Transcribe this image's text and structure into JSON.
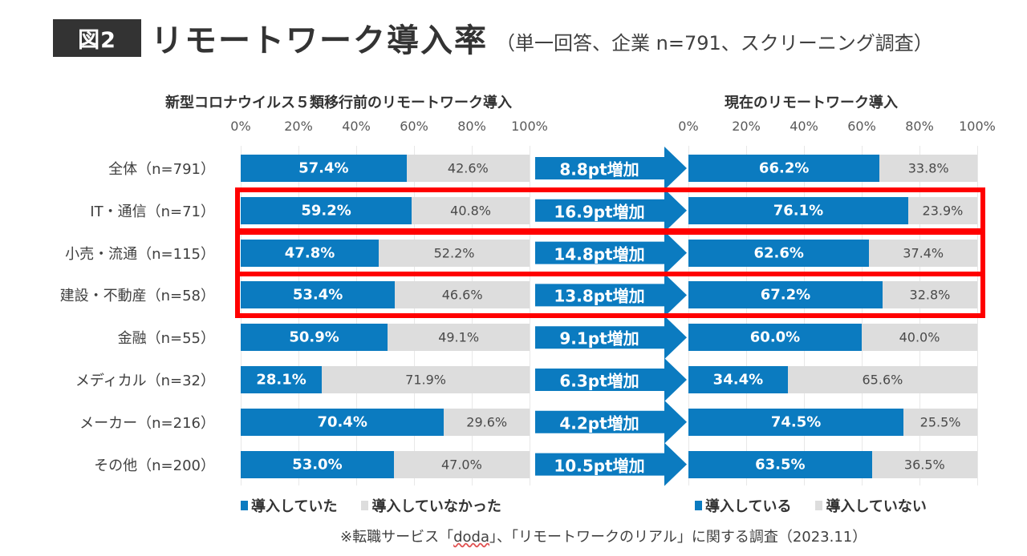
{
  "header": {
    "badge": "図2",
    "title": "リモートワーク導入率",
    "subtitle": "（単一回答、企業 n=791、スクリーニング調査）"
  },
  "colors": {
    "introduced": "#0b7bc0",
    "not_introduced": "#dddddd",
    "highlight": "#ff0000",
    "arrow": "#0b7bc0"
  },
  "chart_data": [
    {
      "type": "bar",
      "orientation": "horizontal-stacked-100",
      "title": "新型コロナウイルス５類移行前のリモートワーク導入",
      "x_ticks": [
        "0%",
        "20%",
        "40%",
        "60%",
        "80%",
        "100%"
      ],
      "xlim": [
        0,
        100
      ],
      "grid": true,
      "categories": [
        "全体（n=791）",
        "IT・通信（n=71）",
        "小売・流通（n=115）",
        "建設・不動産（n=58）",
        "金融（n=55）",
        "メディカル（n=32）",
        "メーカー（n=216）",
        "その他（n=200）"
      ],
      "series": [
        {
          "name": "導入していた",
          "values": [
            57.4,
            59.2,
            47.8,
            53.4,
            50.9,
            28.1,
            70.4,
            53.0
          ],
          "labels": [
            "57.4%",
            "59.2%",
            "47.8%",
            "53.4%",
            "50.9%",
            "28.1%",
            "70.4%",
            "53.0%"
          ]
        },
        {
          "name": "導入していなかった",
          "values": [
            42.6,
            40.8,
            52.2,
            46.6,
            49.1,
            71.9,
            29.6,
            47.0
          ],
          "labels": [
            "42.6%",
            "40.8%",
            "52.2%",
            "46.6%",
            "49.1%",
            "71.9%",
            "29.6%",
            "47.0%"
          ]
        }
      ],
      "legend": [
        "導入していた",
        "導入していなかった"
      ],
      "legend_position": "bottom-left"
    },
    {
      "type": "bar",
      "orientation": "horizontal-stacked-100",
      "title": "現在のリモートワーク導入",
      "x_ticks": [
        "0%",
        "20%",
        "40%",
        "60%",
        "80%",
        "100%"
      ],
      "xlim": [
        0,
        100
      ],
      "grid": true,
      "categories": [
        "全体（n=791）",
        "IT・通信（n=71）",
        "小売・流通（n=115）",
        "建設・不動産（n=58）",
        "金融（n=55）",
        "メディカル（n=32）",
        "メーカー（n=216）",
        "その他（n=200）"
      ],
      "series": [
        {
          "name": "導入している",
          "values": [
            66.2,
            76.1,
            62.6,
            67.2,
            60.0,
            34.4,
            74.5,
            63.5
          ],
          "labels": [
            "66.2%",
            "76.1%",
            "62.6%",
            "67.2%",
            "60.0%",
            "34.4%",
            "74.5%",
            "63.5%"
          ]
        },
        {
          "name": "導入していない",
          "values": [
            33.8,
            23.9,
            37.4,
            32.8,
            40.0,
            65.6,
            25.5,
            36.5
          ],
          "labels": [
            "33.8%",
            "23.9%",
            "37.4%",
            "32.8%",
            "40.0%",
            "65.6%",
            "25.5%",
            "36.5%"
          ]
        }
      ],
      "legend": [
        "導入している",
        "導入していない"
      ],
      "legend_position": "bottom-right"
    }
  ],
  "arrows": [
    "8.8pt増加",
    "16.9pt増加",
    "14.8pt増加",
    "13.8pt増加",
    "9.1pt増加",
    "6.3pt増加",
    "4.2pt増加",
    "10.5pt増加"
  ],
  "highlighted_rows": [
    "IT・通信（n=71）",
    "小売・流通（n=115）",
    "建設・不動産（n=58）"
  ],
  "source": {
    "prefix": "※転職サービス「",
    "brand": "doda",
    "suffix": "」、「リモートワークのリアル」に関する調査（2023.11）"
  }
}
